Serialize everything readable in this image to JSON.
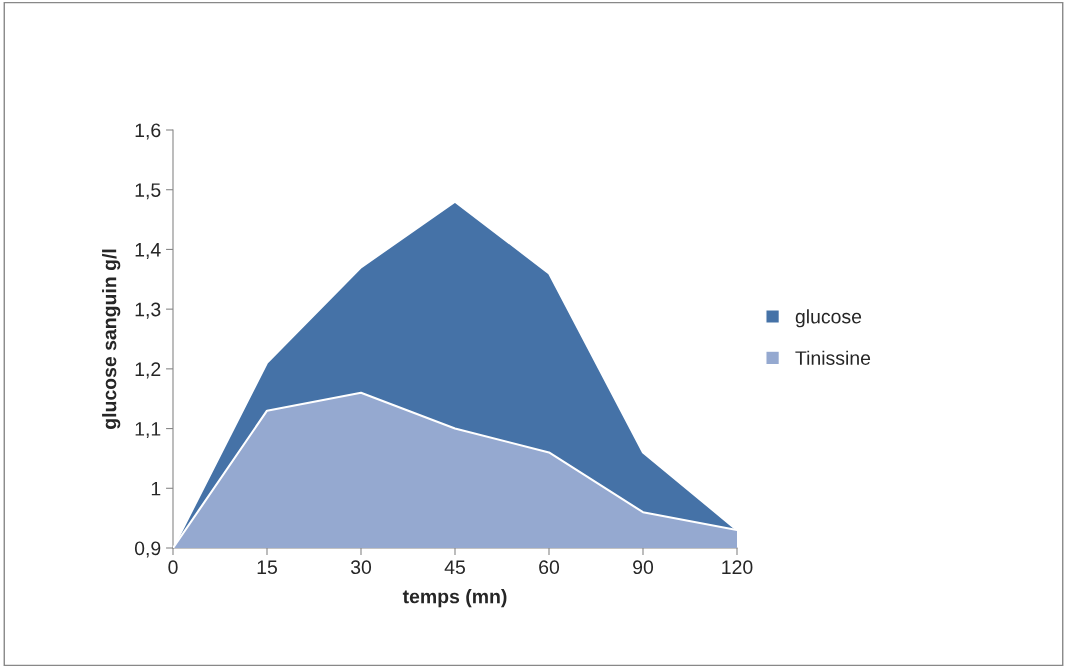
{
  "chart_data": {
    "type": "area",
    "xlabel": "temps (mn)",
    "ylabel": "glucose sanguin g/l",
    "categories": [
      "0",
      "15",
      "30",
      "45",
      "60",
      "90",
      "120"
    ],
    "series": [
      {
        "name": "glucose",
        "color": "#4572a7",
        "values": [
          0.9,
          1.21,
          1.37,
          1.48,
          1.36,
          1.06,
          0.93
        ]
      },
      {
        "name": "Tinissine",
        "color": "#95a9d0",
        "values": [
          0.9,
          1.13,
          1.16,
          1.1,
          1.06,
          0.96,
          0.93
        ]
      }
    ],
    "ylim": [
      0.9,
      1.6
    ],
    "yticks": [
      {
        "value": 0.9,
        "label": "0,9"
      },
      1,
      {
        "value": 1.1,
        "label": "1,1"
      },
      {
        "value": 1.2,
        "label": "1,2"
      },
      {
        "value": 1.3,
        "label": "1,3"
      },
      {
        "value": 1.4,
        "label": "1,4"
      },
      {
        "value": 1.5,
        "label": "1,5"
      },
      {
        "value": 1.6,
        "label": "1,6"
      }
    ],
    "grid": false,
    "legend": "right"
  }
}
